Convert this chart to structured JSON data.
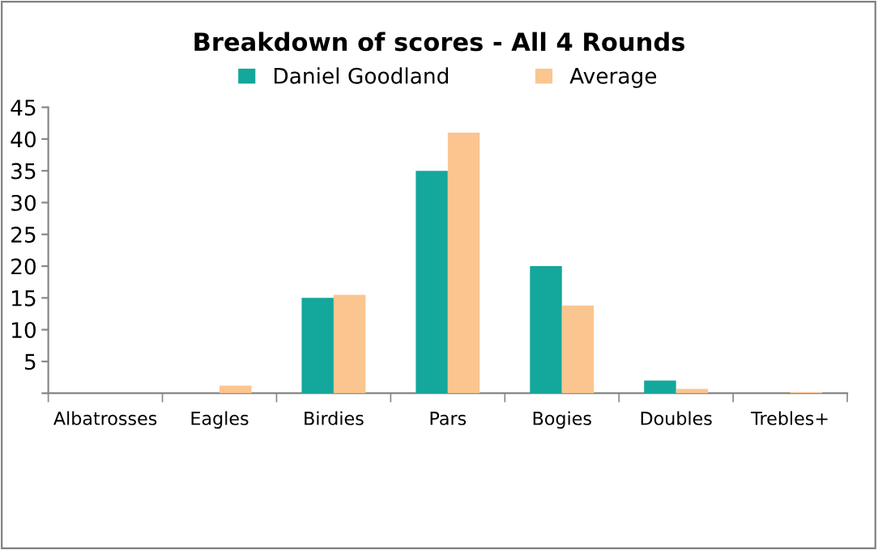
{
  "chart_data": {
    "type": "bar",
    "title": "Breakdown of scores - All 4 Rounds",
    "categories": [
      "Albatrosses",
      "Eagles",
      "Birdies",
      "Pars",
      "Bogies",
      "Doubles",
      "Trebles+"
    ],
    "series": [
      {
        "name": "Daniel Goodland",
        "color": "#14a79c",
        "values": [
          0,
          0,
          15,
          35,
          20,
          2,
          0
        ]
      },
      {
        "name": "Average",
        "color": "#fbc58f",
        "values": [
          0,
          1.2,
          15.5,
          41,
          13.8,
          0.7,
          0.2
        ]
      }
    ],
    "ylim": [
      0,
      45
    ],
    "yticks": [
      {
        "value": 0,
        "label": null
      },
      5,
      10,
      15,
      20,
      25,
      30,
      35,
      40,
      45
    ],
    "grid": false,
    "legend": "top"
  }
}
